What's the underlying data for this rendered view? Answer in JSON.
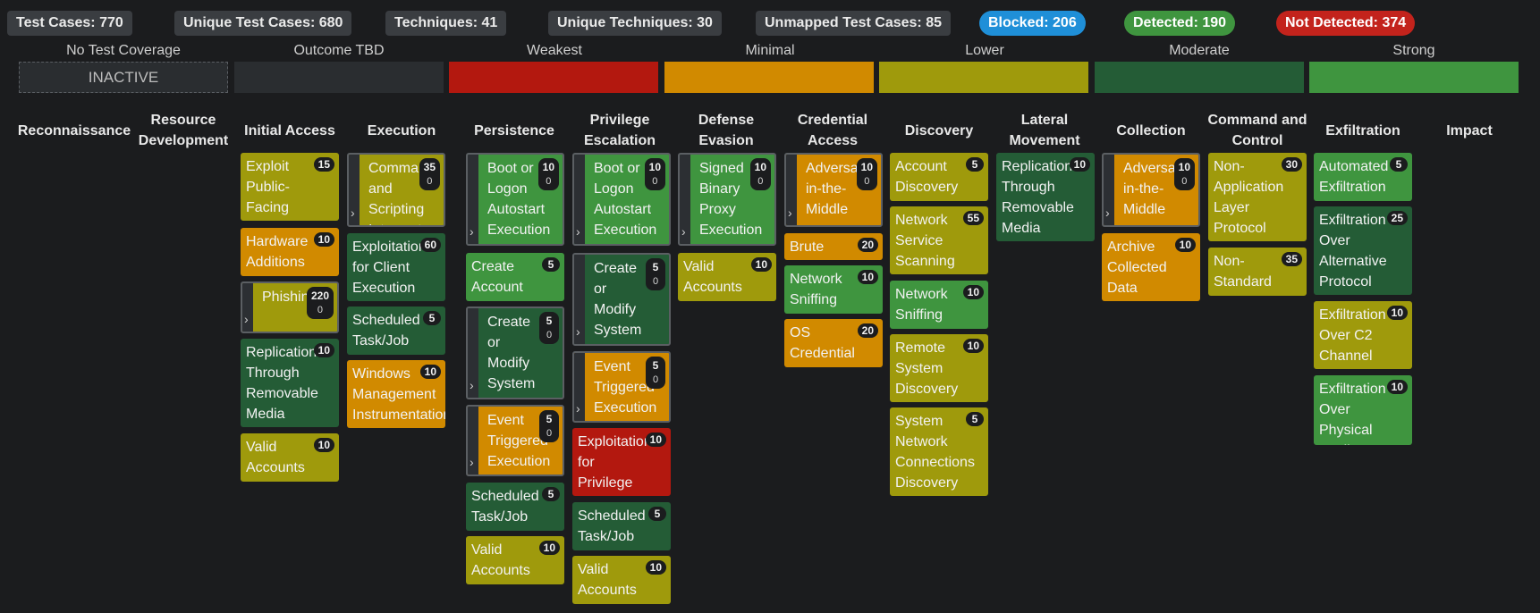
{
  "stats": [
    {
      "label": "Test Cases: 770"
    },
    {
      "label": "Unique Test Cases: 680"
    },
    {
      "label": "Techniques: 41"
    },
    {
      "label": "Unique Techniques: 30"
    },
    {
      "label": "Unmapped Test Cases: 85"
    },
    {
      "label": "Blocked: 206",
      "color": "#1f8fd8"
    },
    {
      "label": "Detected: 190",
      "color": "#3f953f"
    },
    {
      "label": "Not Detected: 374",
      "color": "#c3231c"
    }
  ],
  "legend": {
    "no_test_coverage": "No Test Coverage",
    "inactive": "INACTIVE",
    "outcome_tbd": "Outcome TBD",
    "weakest": "Weakest",
    "minimal": "Minimal",
    "lower": "Lower",
    "moderate": "Moderate",
    "strong": "Strong",
    "colors": {
      "outcome_tbd": "#2a2d30",
      "weakest": "#b3180f",
      "minimal": "#d18a00",
      "lower": "#9f9a0c",
      "moderate": "#245c36",
      "strong": "#3f953f"
    }
  },
  "tactics": [
    {
      "name": "Reconnaissance"
    },
    {
      "name": "Resource Development"
    },
    {
      "name": "Initial Access"
    },
    {
      "name": "Execution"
    },
    {
      "name": "Persistence"
    },
    {
      "name": "Privilege Escalation"
    },
    {
      "name": "Defense Evasion"
    },
    {
      "name": "Credential Access"
    },
    {
      "name": "Discovery"
    },
    {
      "name": "Lateral Movement"
    },
    {
      "name": "Collection"
    },
    {
      "name": "Command and Control"
    },
    {
      "name": "Exfiltration"
    },
    {
      "name": "Impact"
    }
  ],
  "cards": {
    "ia1": {
      "name": "Exploit Public-Facing Application",
      "count": "15"
    },
    "ia2": {
      "name": "Hardware Additions",
      "count": "10"
    },
    "ia3": {
      "name": "Phishing",
      "count": "220",
      "count2": "0"
    },
    "ia4": {
      "name": "Replication Through Removable Media",
      "count": "10"
    },
    "ia5": {
      "name": "Valid Accounts",
      "count": "10"
    },
    "ex1": {
      "name": "Command and Scripting Interpreter",
      "count": "35",
      "count2": "0"
    },
    "ex2": {
      "name": "Exploitation for Client Execution",
      "count": "60"
    },
    "ex3": {
      "name": "Scheduled Task/Job",
      "count": "5"
    },
    "ex4": {
      "name": "Windows Management Instrumentation",
      "count": "10"
    },
    "pe1": {
      "name": "Boot or Logon Autostart Execution",
      "count": "10",
      "count2": "0"
    },
    "pe2": {
      "name": "Create Account",
      "count": "5"
    },
    "pe3": {
      "name": "Create or Modify System Process",
      "count": "5",
      "count2": "0"
    },
    "pe4": {
      "name": "Event Triggered Execution",
      "count": "5",
      "count2": "0"
    },
    "pe5": {
      "name": "Scheduled Task/Job",
      "count": "5"
    },
    "pe6": {
      "name": "Valid Accounts",
      "count": "10"
    },
    "pv1": {
      "name": "Boot or Logon Autostart Execution",
      "count": "10",
      "count2": "0"
    },
    "pv2": {
      "name": "Create or Modify System Process",
      "count": "5",
      "count2": "0"
    },
    "pv3": {
      "name": "Event Triggered Execution",
      "count": "5",
      "count2": "0"
    },
    "pv4": {
      "name": "Exploitation for Privilege Escalation",
      "count": "10"
    },
    "pv5": {
      "name": "Scheduled Task/Job",
      "count": "5"
    },
    "pv6": {
      "name": "Valid Accounts",
      "count": "10"
    },
    "de1": {
      "name": "Signed Binary Proxy Execution",
      "count": "10",
      "count2": "0"
    },
    "de2": {
      "name": "Valid Accounts",
      "count": "10"
    },
    "ca1": {
      "name": "Adversary-in-the-Middle",
      "count": "10",
      "count2": "0"
    },
    "ca2": {
      "name": "Brute Force",
      "count": "20"
    },
    "ca3": {
      "name": "Network Sniffing",
      "count": "10"
    },
    "ca4": {
      "name": "OS Credential Dumping",
      "count": "20"
    },
    "di1": {
      "name": "Account Discovery",
      "count": "5"
    },
    "di2": {
      "name": "Network Service Scanning",
      "count": "55"
    },
    "di3": {
      "name": "Network Sniffing",
      "count": "10"
    },
    "di4": {
      "name": "Remote System Discovery",
      "count": "10"
    },
    "di5": {
      "name": "System Network Connections Discovery",
      "count": "5"
    },
    "lm1": {
      "name": "Replication Through Removable Media",
      "count": "10"
    },
    "co1": {
      "name": "Adversary-in-the-Middle",
      "count": "10",
      "count2": "0"
    },
    "co2": {
      "name": "Archive Collected Data",
      "count": "10"
    },
    "cc1": {
      "name": "Non-Application Layer Protocol",
      "count": "30"
    },
    "cc2": {
      "name": "Non-Standard Port",
      "count": "35"
    },
    "xf1": {
      "name": "Automated Exfiltration",
      "count": "5"
    },
    "xf2": {
      "name": "Exfiltration Over Alternative Protocol",
      "count": "25"
    },
    "xf3": {
      "name": "Exfiltration Over C2 Channel",
      "count": "10"
    },
    "xf4": {
      "name": "Exfiltration Over Physical Medium",
      "count": "10"
    }
  },
  "icons": {
    "expander": "chevron-right-icon"
  }
}
